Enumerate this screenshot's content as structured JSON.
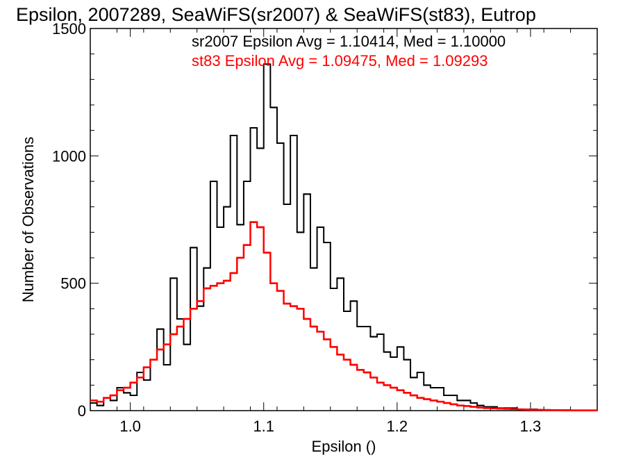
{
  "chart_data": {
    "type": "line",
    "title": "Epsilon, 2007289, SeaWiFS(sr2007) & SeaWiFS(st83), Eutrop",
    "xlabel": "Epsilon ()",
    "ylabel": "Number of Observations",
    "xlim": [
      0.97,
      1.35
    ],
    "ylim": [
      0,
      1500
    ],
    "xticks": [
      1.0,
      1.1,
      1.2,
      1.3
    ],
    "xtick_labels": [
      "1.0",
      "1.1",
      "1.2",
      "1.3"
    ],
    "yticks": [
      0,
      500,
      1000,
      1500
    ],
    "ytick_labels": [
      "0",
      "500",
      "1000",
      "1500"
    ],
    "grid": false,
    "annotations": [
      {
        "text": "sr2007 Epsilon Avg = 1.10414, Med = 1.10000",
        "color": "#000000"
      },
      {
        "text": "st83 Epsilon Avg = 1.09475, Med = 1.09293",
        "color": "#ff0000"
      }
    ],
    "series": [
      {
        "color": "#000000",
        "style": "step",
        "x": [
          0.97,
          0.975,
          0.98,
          0.985,
          0.99,
          0.995,
          1.0,
          1.005,
          1.01,
          1.015,
          1.02,
          1.025,
          1.03,
          1.035,
          1.04,
          1.045,
          1.05,
          1.055,
          1.06,
          1.065,
          1.07,
          1.075,
          1.08,
          1.085,
          1.09,
          1.095,
          1.1,
          1.105,
          1.11,
          1.115,
          1.12,
          1.125,
          1.13,
          1.135,
          1.14,
          1.145,
          1.15,
          1.155,
          1.16,
          1.165,
          1.17,
          1.175,
          1.18,
          1.185,
          1.19,
          1.195,
          1.2,
          1.205,
          1.21,
          1.215,
          1.22,
          1.225,
          1.23,
          1.235,
          1.24,
          1.245,
          1.25,
          1.255,
          1.26,
          1.265,
          1.27,
          1.275,
          1.28,
          1.285,
          1.29,
          1.295,
          1.3,
          1.305,
          1.31,
          1.315,
          1.32,
          1.325,
          1.33,
          1.335,
          1.34,
          1.345
        ],
        "y": [
          30,
          20,
          50,
          40,
          90,
          70,
          60,
          150,
          120,
          200,
          320,
          180,
          520,
          360,
          260,
          640,
          410,
          560,
          900,
          720,
          800,
          1080,
          730,
          900,
          1110,
          1030,
          1360,
          1190,
          1050,
          810,
          1080,
          700,
          850,
          560,
          720,
          660,
          480,
          520,
          390,
          430,
          330,
          330,
          290,
          300,
          230,
          210,
          250,
          200,
          130,
          150,
          100,
          90,
          90,
          60,
          60,
          40,
          40,
          30,
          20,
          15,
          15,
          10,
          10,
          10,
          5,
          5,
          5,
          3,
          3,
          2,
          2,
          2,
          1,
          1,
          1,
          1
        ]
      },
      {
        "color": "#ff0000",
        "style": "step",
        "x": [
          0.97,
          0.975,
          0.98,
          0.985,
          0.99,
          0.995,
          1.0,
          1.005,
          1.01,
          1.015,
          1.02,
          1.025,
          1.03,
          1.035,
          1.04,
          1.045,
          1.05,
          1.055,
          1.06,
          1.065,
          1.07,
          1.075,
          1.08,
          1.085,
          1.09,
          1.095,
          1.1,
          1.105,
          1.11,
          1.115,
          1.12,
          1.125,
          1.13,
          1.135,
          1.14,
          1.145,
          1.15,
          1.155,
          1.16,
          1.165,
          1.17,
          1.175,
          1.18,
          1.185,
          1.19,
          1.195,
          1.2,
          1.205,
          1.21,
          1.215,
          1.22,
          1.225,
          1.23,
          1.235,
          1.24,
          1.245,
          1.25,
          1.255,
          1.26,
          1.265,
          1.27,
          1.275,
          1.28,
          1.285,
          1.29,
          1.295,
          1.3,
          1.305,
          1.31,
          1.315,
          1.32,
          1.325,
          1.33,
          1.335,
          1.34,
          1.345
        ],
        "y": [
          40,
          35,
          50,
          60,
          80,
          90,
          110,
          130,
          170,
          200,
          240,
          260,
          300,
          330,
          360,
          400,
          430,
          480,
          490,
          500,
          510,
          540,
          600,
          650,
          740,
          720,
          620,
          500,
          470,
          420,
          410,
          400,
          360,
          330,
          310,
          280,
          250,
          220,
          200,
          180,
          160,
          150,
          130,
          110,
          100,
          90,
          80,
          70,
          60,
          50,
          45,
          40,
          35,
          30,
          25,
          20,
          18,
          15,
          12,
          10,
          9,
          8,
          7,
          6,
          5,
          4,
          3,
          3,
          2,
          2,
          2,
          1,
          1,
          1,
          1,
          1
        ]
      }
    ]
  }
}
